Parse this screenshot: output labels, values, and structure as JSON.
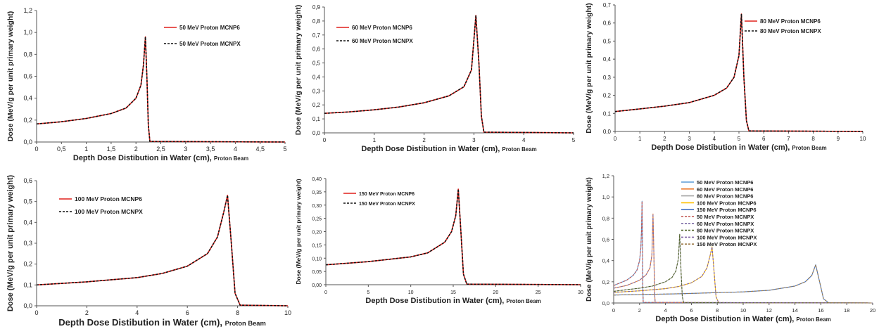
{
  "colors": {
    "mcnp6": "#e0201b",
    "mcnpx": "#111111",
    "axis": "#555555"
  },
  "chart_data": [
    {
      "type": "line",
      "xlabel_main": "Depth Dose Distibution in Water (cm),",
      "xlabel_suffix": "Proton Beam",
      "ylabel": "Dose (MeV/g per unit primary weight)",
      "xlim": [
        0,
        5
      ],
      "ylim": [
        0,
        1.2
      ],
      "xticks": [
        0,
        0.5,
        1,
        1.5,
        2,
        2.5,
        3,
        3.5,
        4,
        4.5,
        5
      ],
      "xtick_labels": [
        "0",
        "0,5",
        "1",
        "1,5",
        "2",
        "2,5",
        "3",
        "3,5",
        "4",
        "4,5",
        "5"
      ],
      "yticks": [
        0,
        0.2,
        0.4,
        0.6,
        0.8,
        1.0,
        1.2
      ],
      "ytick_labels": [
        "0,0",
        "0,2",
        "0,4",
        "0,6",
        "0,8",
        "1,0",
        "1,2"
      ],
      "legend_position": "top-right",
      "series": [
        {
          "name": "50 MeV Proton MCNP6",
          "x": [
            0,
            0.5,
            1,
            1.5,
            1.8,
            2.0,
            2.1,
            2.15,
            2.19,
            2.22,
            2.25,
            2.28,
            5
          ],
          "y": [
            0.165,
            0.185,
            0.215,
            0.26,
            0.31,
            0.4,
            0.52,
            0.7,
            0.96,
            0.6,
            0.15,
            0.005,
            0.0
          ]
        },
        {
          "name": "50 MeV Proton MCNPX",
          "x": [
            0,
            0.5,
            1,
            1.5,
            1.8,
            2.0,
            2.1,
            2.15,
            2.19,
            2.22,
            2.25,
            2.28,
            5
          ],
          "y": [
            0.165,
            0.185,
            0.215,
            0.26,
            0.31,
            0.4,
            0.52,
            0.7,
            0.96,
            0.6,
            0.15,
            0.005,
            0.0
          ]
        }
      ]
    },
    {
      "type": "line",
      "xlabel_main": "Depth Dose Distibution in Water (cm),",
      "xlabel_suffix": "Proton Beam",
      "ylabel": "Dose (MeV/g per unit primary weight)",
      "xlim": [
        0,
        5
      ],
      "ylim": [
        0,
        0.9
      ],
      "xticks": [
        0,
        1,
        2,
        3,
        4,
        5
      ],
      "xtick_labels": [
        "0",
        "1",
        "2",
        "3",
        "4",
        "5"
      ],
      "yticks": [
        0,
        0.1,
        0.2,
        0.3,
        0.4,
        0.5,
        0.6,
        0.7,
        0.8,
        0.9
      ],
      "ytick_labels": [
        "0,0",
        "0,1",
        "0,2",
        "0,3",
        "0,4",
        "0,5",
        "0,6",
        "0,7",
        "0,8",
        "0,9"
      ],
      "legend_position": "top-right",
      "series": [
        {
          "name": "60 MeV Proton MCNP6",
          "x": [
            0,
            0.5,
            1,
            1.5,
            2,
            2.5,
            2.8,
            2.95,
            3.04,
            3.1,
            3.15,
            3.2,
            5
          ],
          "y": [
            0.14,
            0.15,
            0.165,
            0.185,
            0.215,
            0.265,
            0.33,
            0.45,
            0.84,
            0.5,
            0.12,
            0.005,
            0.0
          ]
        },
        {
          "name": "60 MeV Proton MCNPX",
          "x": [
            0,
            0.5,
            1,
            1.5,
            2,
            2.5,
            2.8,
            2.95,
            3.04,
            3.1,
            3.15,
            3.2,
            5
          ],
          "y": [
            0.14,
            0.15,
            0.165,
            0.185,
            0.215,
            0.265,
            0.33,
            0.45,
            0.84,
            0.5,
            0.12,
            0.005,
            0.0
          ]
        }
      ]
    },
    {
      "type": "line",
      "xlabel_main": "Depth Dose Distibution in Water (cm),",
      "xlabel_suffix": "Proton Beam",
      "ylabel": "Dose (MeV/g per unit primary weight)",
      "xlim": [
        0,
        10
      ],
      "ylim": [
        0,
        0.7
      ],
      "xticks": [
        0,
        1,
        2,
        3,
        4,
        5,
        6,
        7,
        8,
        9,
        10
      ],
      "xtick_labels": [
        "0",
        "1",
        "2",
        "3",
        "4",
        "5",
        "6",
        "7",
        "8",
        "9",
        "10"
      ],
      "yticks": [
        0,
        0.1,
        0.2,
        0.3,
        0.4,
        0.5,
        0.6,
        0.7
      ],
      "ytick_labels": [
        "0,0",
        "0,1",
        "0,2",
        "0,3",
        "0,4",
        "0,5",
        "0,6",
        "0,7"
      ],
      "legend_position": "top-right",
      "series": [
        {
          "name": "80 MeV Proton MCNP6",
          "x": [
            0,
            1,
            2,
            3,
            4,
            4.5,
            4.8,
            5.0,
            5.1,
            5.2,
            5.3,
            5.4,
            10
          ],
          "y": [
            0.11,
            0.125,
            0.14,
            0.16,
            0.2,
            0.24,
            0.3,
            0.42,
            0.65,
            0.3,
            0.06,
            0.003,
            0.0
          ]
        },
        {
          "name": "80 MeV Proton MCNPX",
          "x": [
            0,
            1,
            2,
            3,
            4,
            4.5,
            4.8,
            5.0,
            5.1,
            5.2,
            5.3,
            5.4,
            10
          ],
          "y": [
            0.11,
            0.125,
            0.14,
            0.16,
            0.2,
            0.24,
            0.3,
            0.42,
            0.65,
            0.3,
            0.06,
            0.003,
            0.0
          ]
        }
      ]
    },
    {
      "type": "line",
      "xlabel_main": "Depth Dose Distibution in Water (cm),",
      "xlabel_suffix": "Proton Beam",
      "ylabel": "Dose (MeV/g per unit primary weight)",
      "xlim": [
        0,
        10
      ],
      "ylim": [
        0,
        0.6
      ],
      "xticks": [
        0,
        2,
        4,
        6,
        8,
        10
      ],
      "xtick_labels": [
        "0",
        "2",
        "4",
        "6",
        "8",
        "10"
      ],
      "yticks": [
        0,
        0.1,
        0.2,
        0.3,
        0.4,
        0.5,
        0.6
      ],
      "ytick_labels": [
        "0,0",
        "0,1",
        "0,2",
        "0,3",
        "0,4",
        "0,5",
        "0,6"
      ],
      "legend_position": "top-left",
      "series": [
        {
          "name": "100 MeV Proton MCNP6",
          "x": [
            0,
            2,
            4,
            5,
            6,
            6.8,
            7.2,
            7.45,
            7.6,
            7.75,
            7.9,
            8.1,
            10
          ],
          "y": [
            0.1,
            0.115,
            0.135,
            0.155,
            0.19,
            0.25,
            0.33,
            0.45,
            0.53,
            0.3,
            0.06,
            0.003,
            0.0
          ]
        },
        {
          "name": "100 MeV Proton MCNPX",
          "x": [
            0,
            2,
            4,
            5,
            6,
            6.8,
            7.2,
            7.45,
            7.6,
            7.75,
            7.9,
            8.1,
            10
          ],
          "y": [
            0.1,
            0.115,
            0.135,
            0.155,
            0.19,
            0.25,
            0.33,
            0.45,
            0.53,
            0.3,
            0.06,
            0.003,
            0.0
          ]
        }
      ]
    },
    {
      "type": "line",
      "xlabel_main": "Depth Dose Distibution in Water (cm),",
      "xlabel_suffix": "Proton Beam",
      "ylabel": "Dose (MeV/g per unit primary weight)",
      "xlim": [
        0,
        30
      ],
      "ylim": [
        0,
        0.4
      ],
      "xticks": [
        0,
        5,
        10,
        15,
        20,
        25,
        30
      ],
      "xtick_labels": [
        "0",
        "5",
        "10",
        "15",
        "20",
        "25",
        "30"
      ],
      "yticks": [
        0,
        0.05,
        0.1,
        0.15,
        0.2,
        0.25,
        0.3,
        0.35,
        0.4
      ],
      "ytick_labels": [
        "0,00",
        "0,05",
        "0,10",
        "0,15",
        "0,20",
        "0,25",
        "0,30",
        "0,35",
        "0,40"
      ],
      "legend_position": "top-right",
      "series": [
        {
          "name": "150 MeV Proton MCNP6",
          "x": [
            0,
            5,
            10,
            12,
            14,
            14.8,
            15.3,
            15.6,
            15.9,
            16.2,
            16.6,
            30
          ],
          "y": [
            0.075,
            0.087,
            0.105,
            0.12,
            0.16,
            0.2,
            0.26,
            0.36,
            0.2,
            0.04,
            0.002,
            0.0
          ]
        },
        {
          "name": "150 MeV Proton MCNPX",
          "x": [
            0,
            5,
            10,
            12,
            14,
            14.8,
            15.3,
            15.6,
            15.9,
            16.2,
            16.6,
            30
          ],
          "y": [
            0.075,
            0.087,
            0.105,
            0.12,
            0.16,
            0.2,
            0.26,
            0.36,
            0.2,
            0.04,
            0.002,
            0.0
          ]
        }
      ]
    },
    {
      "type": "line",
      "xlabel_main": "Depth Dose Distibution in Water (cm),",
      "xlabel_suffix": "Proton Beam",
      "ylabel": "Dose (MeV/g per unit primary weight)",
      "xlim": [
        0,
        20
      ],
      "ylim": [
        0,
        1.2
      ],
      "xticks": [
        0,
        2,
        4,
        6,
        8,
        10,
        12,
        14,
        16,
        18,
        20
      ],
      "xtick_labels": [
        "0",
        "2",
        "4",
        "6",
        "8",
        "10",
        "12",
        "14",
        "16",
        "18",
        "20"
      ],
      "yticks": [
        0,
        0.2,
        0.4,
        0.6,
        0.8,
        1.0,
        1.2
      ],
      "ytick_labels": [
        "0,0",
        "0,2",
        "0,4",
        "0,6",
        "0,8",
        "1,0",
        "1,2"
      ],
      "legend_position": "top-right",
      "series": [
        {
          "name": "50 MeV Proton MCNP6",
          "color": "#5b9bd5",
          "dash": false,
          "x": [
            0,
            1,
            1.5,
            1.8,
            2.0,
            2.1,
            2.15,
            2.19,
            2.22,
            2.25,
            2.28,
            20
          ],
          "y": [
            0.165,
            0.215,
            0.26,
            0.31,
            0.4,
            0.52,
            0.7,
            0.96,
            0.6,
            0.15,
            0.005,
            0.0
          ]
        },
        {
          "name": "60 MeV Proton MCNP6",
          "color": "#ed7d31",
          "dash": false,
          "x": [
            0,
            1,
            2,
            2.5,
            2.8,
            2.95,
            3.04,
            3.1,
            3.15,
            3.2,
            20
          ],
          "y": [
            0.14,
            0.165,
            0.215,
            0.265,
            0.33,
            0.45,
            0.84,
            0.5,
            0.12,
            0.005,
            0.0
          ]
        },
        {
          "name": "80 MeV Proton MCNP6",
          "color": "#a5a5a5",
          "dash": false,
          "x": [
            0,
            2,
            3,
            4,
            4.5,
            4.8,
            5.0,
            5.1,
            5.2,
            5.3,
            5.4,
            20
          ],
          "y": [
            0.11,
            0.14,
            0.16,
            0.2,
            0.24,
            0.3,
            0.42,
            0.65,
            0.3,
            0.06,
            0.003,
            0.0
          ]
        },
        {
          "name": "100 MeV Proton MCNP6",
          "color": "#ffc000",
          "dash": false,
          "x": [
            0,
            2,
            4,
            5,
            6,
            6.8,
            7.2,
            7.45,
            7.6,
            7.75,
            7.9,
            8.1,
            20
          ],
          "y": [
            0.1,
            0.115,
            0.135,
            0.155,
            0.19,
            0.25,
            0.33,
            0.45,
            0.53,
            0.3,
            0.06,
            0.003,
            0.0
          ]
        },
        {
          "name": "150 MeV Proton MCNP6",
          "color": "#4472c4",
          "dash": false,
          "x": [
            0,
            5,
            10,
            12,
            14,
            14.8,
            15.3,
            15.6,
            15.9,
            16.2,
            16.6,
            20
          ],
          "y": [
            0.075,
            0.087,
            0.105,
            0.12,
            0.16,
            0.2,
            0.26,
            0.36,
            0.2,
            0.04,
            0.002,
            0.0
          ]
        },
        {
          "name": "50 MeV Proton MCNPX",
          "color": "#c0504d",
          "dash": true,
          "x": [
            0,
            1,
            1.5,
            1.8,
            2.0,
            2.1,
            2.15,
            2.19,
            2.22,
            2.25,
            2.28,
            20
          ],
          "y": [
            0.165,
            0.215,
            0.26,
            0.31,
            0.4,
            0.52,
            0.7,
            0.96,
            0.6,
            0.15,
            0.005,
            0.0
          ]
        },
        {
          "name": "60 MeV Proton MCNPX",
          "color": "#7f6fa8",
          "dash": true,
          "x": [
            0,
            1,
            2,
            2.5,
            2.8,
            2.95,
            3.04,
            3.1,
            3.15,
            3.2,
            20
          ],
          "y": [
            0.14,
            0.165,
            0.215,
            0.265,
            0.33,
            0.45,
            0.84,
            0.5,
            0.12,
            0.005,
            0.0
          ]
        },
        {
          "name": "80 MeV Proton MCNPX",
          "color": "#4f6228",
          "dash": true,
          "x": [
            0,
            2,
            3,
            4,
            4.5,
            4.8,
            5.0,
            5.1,
            5.2,
            5.3,
            5.4,
            20
          ],
          "y": [
            0.11,
            0.14,
            0.16,
            0.2,
            0.24,
            0.3,
            0.42,
            0.65,
            0.3,
            0.06,
            0.003,
            0.0
          ]
        },
        {
          "name": "100 MeV Proton MCNPX",
          "color": "#8064a2",
          "dash": true,
          "x": [
            0,
            2,
            4,
            5,
            6,
            6.8,
            7.2,
            7.45,
            7.6,
            7.75,
            7.9,
            8.1,
            20
          ],
          "y": [
            0.1,
            0.115,
            0.135,
            0.155,
            0.19,
            0.25,
            0.33,
            0.45,
            0.53,
            0.3,
            0.06,
            0.003,
            0.0
          ]
        },
        {
          "name": "150 MeV Proton MCNPX",
          "color": "#9c7b48",
          "dash": true,
          "x": [
            0,
            5,
            10,
            12,
            14,
            14.8,
            15.3,
            15.6,
            15.9,
            16.2,
            16.6,
            20
          ],
          "y": [
            0.075,
            0.087,
            0.105,
            0.12,
            0.16,
            0.2,
            0.26,
            0.36,
            0.2,
            0.04,
            0.002,
            0.0
          ]
        }
      ]
    }
  ]
}
